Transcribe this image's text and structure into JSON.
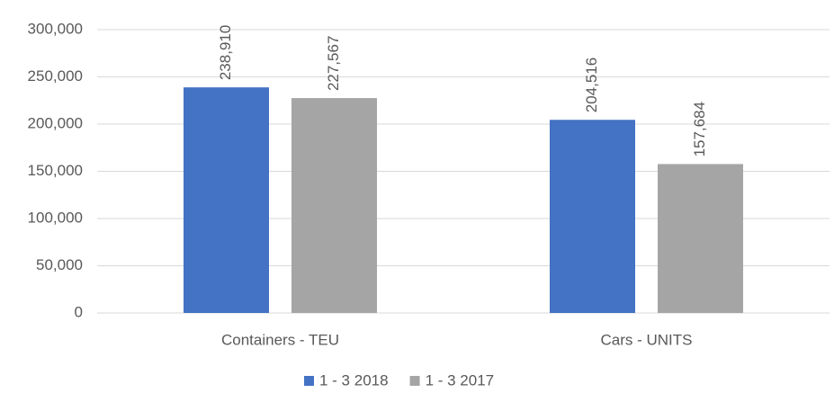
{
  "chart_data": {
    "type": "bar",
    "categories": [
      "Containers - TEU",
      "Cars - UNITS"
    ],
    "series": [
      {
        "name": "1 - 3 2018",
        "color": "#4472c4",
        "values": [
          238910,
          204516
        ],
        "value_labels": [
          "238,910",
          "204,516"
        ]
      },
      {
        "name": "1 - 3 2017",
        "color": "#a5a5a5",
        "values": [
          227567,
          157684
        ],
        "value_labels": [
          "227,567",
          "157,684"
        ]
      }
    ],
    "ylim": [
      0,
      300000
    ],
    "yticks": [
      0,
      {
        "value": 50000,
        "label": "50,000"
      },
      {
        "value": 100000,
        "label": "100,000"
      },
      {
        "value": 150000,
        "label": "150,000"
      },
      {
        "value": 200000,
        "label": "200,000"
      },
      {
        "value": 250000,
        "label": "250,000"
      },
      {
        "value": 300000,
        "label": "300,000"
      }
    ],
    "grid": true,
    "legend": "bottom"
  }
}
